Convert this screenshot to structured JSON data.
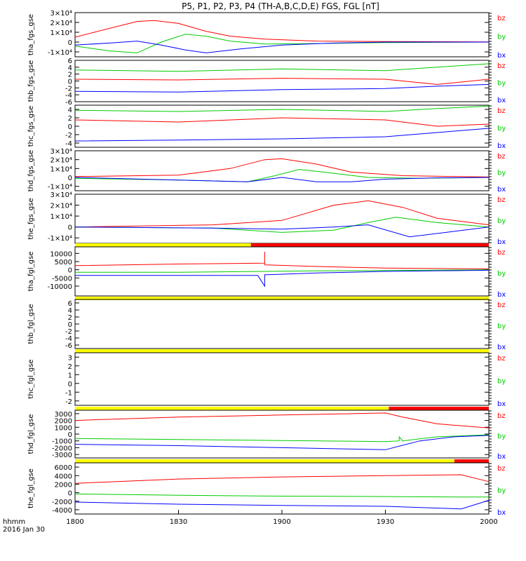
{
  "title": "P5, P1, P2, P3, P4 (TH-A,B,C,D,E) FGS, FGL [nT]",
  "footer": {
    "time_label": "hhmm",
    "date_label": "2016 Jan 30"
  },
  "chart_data": {
    "type": "line",
    "xaxis": {
      "range_hhmm": [
        "18:00",
        "20:00"
      ],
      "tick_labels": [
        "1800",
        "1830",
        "1900",
        "1930",
        "2000"
      ]
    },
    "colors": {
      "bz": "#ff0000",
      "by": "#00cc00",
      "bx": "#0000ff"
    },
    "panels": [
      {
        "id": "tha-fgs",
        "ylabel": "tha_fgs_gse",
        "ylim": [
          -15000,
          30000
        ],
        "yticks": [
          "3×10⁴",
          "2×10⁴",
          "1×10⁴",
          "0",
          "-1×10⁴"
        ],
        "ytick_values": [
          30000,
          20000,
          10000,
          0,
          -10000
        ],
        "legend": [
          "bz",
          "by",
          "bx"
        ],
        "series": [
          {
            "name": "bz",
            "x": [
              "18:00",
              "18:10",
              "18:18",
              "18:23",
              "18:30",
              "18:38",
              "18:45",
              "18:55",
              "19:10",
              "19:30",
              "20:00"
            ],
            "y": [
              5000,
              14000,
              21000,
              22000,
              19000,
              11000,
              6000,
              3000,
              1000,
              500,
              200
            ]
          },
          {
            "name": "by",
            "x": [
              "18:00",
              "18:10",
              "18:18",
              "18:25",
              "18:32",
              "18:38",
              "18:45",
              "18:55",
              "19:10",
              "19:30",
              "20:00"
            ],
            "y": [
              -4000,
              -9000,
              -11000,
              0,
              8000,
              6000,
              1000,
              -2000,
              -1500,
              -500,
              0
            ]
          },
          {
            "name": "bx",
            "x": [
              "18:00",
              "18:10",
              "18:18",
              "18:25",
              "18:32",
              "18:38",
              "18:48",
              "19:00",
              "19:15",
              "19:30",
              "20:00"
            ],
            "y": [
              -3000,
              -1000,
              1000,
              -3000,
              -8000,
              -11000,
              -7000,
              -3000,
              -1000,
              0,
              0
            ]
          }
        ]
      },
      {
        "id": "thb-fgs",
        "ylabel": "thb_fgs_gse",
        "ylim": [
          -6,
          6
        ],
        "yticks": [
          "6",
          "4",
          "2",
          "0",
          "-2",
          "-4",
          "-6"
        ],
        "ytick_values": [
          6,
          4,
          2,
          0,
          -2,
          -4,
          -6
        ],
        "legend": [
          "bz",
          "by",
          "bx"
        ],
        "series": [
          {
            "name": "by",
            "x": [
              "18:00",
              "18:30",
              "19:00",
              "19:30",
              "19:45",
              "20:00"
            ],
            "y": [
              3.2,
              2.8,
              3.5,
              3.0,
              4.0,
              5.0
            ]
          },
          {
            "name": "bz",
            "x": [
              "18:00",
              "18:30",
              "19:00",
              "19:30",
              "19:45",
              "20:00"
            ],
            "y": [
              0.5,
              0.3,
              0.8,
              0.5,
              -1.0,
              0.5
            ]
          },
          {
            "name": "bx",
            "x": [
              "18:00",
              "18:30",
              "19:00",
              "19:30",
              "19:45",
              "20:00"
            ],
            "y": [
              -3.0,
              -3.2,
              -2.5,
              -2.2,
              -1.5,
              -1.0
            ]
          }
        ]
      },
      {
        "id": "thc-fgs",
        "ylabel": "thc_fgs_gse",
        "ylim": [
          -5,
          5
        ],
        "yticks": [
          "4",
          "2",
          "0",
          "-2",
          "-4"
        ],
        "ytick_values": [
          4,
          2,
          0,
          -2,
          -4
        ],
        "legend": [
          "bz",
          "by",
          "bx"
        ],
        "series": [
          {
            "name": "by",
            "x": [
              "18:00",
              "18:30",
              "19:00",
              "19:30",
              "19:45",
              "20:00"
            ],
            "y": [
              3.8,
              3.5,
              4.0,
              3.5,
              4.2,
              4.8
            ]
          },
          {
            "name": "bz",
            "x": [
              "18:00",
              "18:30",
              "19:00",
              "19:30",
              "19:45",
              "20:00"
            ],
            "y": [
              1.5,
              1.0,
              2.0,
              1.5,
              0.0,
              0.5
            ]
          },
          {
            "name": "bx",
            "x": [
              "18:00",
              "18:30",
              "19:00",
              "19:30",
              "19:45",
              "20:00"
            ],
            "y": [
              -3.5,
              -3.3,
              -3.0,
              -2.5,
              -1.5,
              -0.5
            ]
          }
        ]
      },
      {
        "id": "thd-fgs",
        "ylabel": "thd_fgs_gse",
        "ylim": [
          -15000,
          30000
        ],
        "yticks": [
          "3×10⁴",
          "2×10⁴",
          "1×10⁴",
          "0",
          "-1×10⁴"
        ],
        "ytick_values": [
          30000,
          20000,
          10000,
          0,
          -10000
        ],
        "legend": [
          "bz",
          "by",
          "bx"
        ],
        "series": [
          {
            "name": "bz",
            "x": [
              "18:00",
              "18:30",
              "18:45",
              "18:55",
              "19:00",
              "19:10",
              "19:20",
              "19:35",
              "20:00"
            ],
            "y": [
              1000,
              2500,
              10000,
              20000,
              21000,
              15000,
              6000,
              2000,
              500
            ]
          },
          {
            "name": "by",
            "x": [
              "18:00",
              "18:30",
              "18:50",
              "18:58",
              "19:05",
              "19:12",
              "19:25",
              "19:40",
              "20:00"
            ],
            "y": [
              -1000,
              -3000,
              -5000,
              2000,
              9000,
              6000,
              0,
              -1000,
              0
            ]
          },
          {
            "name": "bx",
            "x": [
              "18:00",
              "18:30",
              "18:50",
              "19:00",
              "19:10",
              "19:20",
              "19:30",
              "19:45",
              "20:00"
            ],
            "y": [
              0,
              -3000,
              -5000,
              0,
              -5000,
              -5000,
              -2000,
              -500,
              0
            ]
          }
        ]
      },
      {
        "id": "the-fgs",
        "ylabel": "the_fgs_gse",
        "ylim": [
          -15000,
          30000
        ],
        "yticks": [
          "3×10⁴",
          "2×10⁴",
          "1×10⁴",
          "0",
          "-1×10⁴"
        ],
        "ytick_values": [
          30000,
          20000,
          10000,
          0,
          -10000
        ],
        "legend": [
          "bz",
          "by",
          "bx"
        ],
        "series": [
          {
            "name": "bz",
            "x": [
              "18:00",
              "18:40",
              "19:00",
              "19:15",
              "19:25",
              "19:35",
              "19:45",
              "20:00"
            ],
            "y": [
              0,
              2000,
              6000,
              20000,
              24000,
              18000,
              8000,
              2000
            ]
          },
          {
            "name": "by",
            "x": [
              "18:00",
              "18:40",
              "19:00",
              "19:15",
              "19:25",
              "19:33",
              "19:45",
              "20:00"
            ],
            "y": [
              0,
              -1000,
              -5000,
              -3000,
              4000,
              9000,
              4000,
              0
            ]
          },
          {
            "name": "bx",
            "x": [
              "18:00",
              "18:40",
              "19:00",
              "19:15",
              "19:25",
              "19:37",
              "19:50",
              "20:00"
            ],
            "y": [
              0,
              -1000,
              -2000,
              0,
              2000,
              -9000,
              -4000,
              0
            ]
          }
        ]
      },
      {
        "id": "tha-fgl",
        "ylabel": "tha_fgl_gse",
        "ylim": [
          -16000,
          14000
        ],
        "yticks": [
          "10000",
          "5000",
          "0",
          "-5000",
          "-10000"
        ],
        "ytick_values": [
          10000,
          5000,
          0,
          -5000,
          -10000
        ],
        "legend": [
          "bz",
          "by",
          "bx"
        ],
        "mode_bar": {
          "yellow_until": "18:51",
          "red_from": "18:51"
        },
        "series": [
          {
            "name": "bz",
            "x": [
              "18:00",
              "18:30",
              "18:55",
              "18:55",
              "18:55",
              "18:55",
              "19:10",
              "19:30",
              "20:00"
            ],
            "y": [
              2500,
              3500,
              4000,
              11000,
              4000,
              3000,
              2000,
              1000,
              500
            ]
          },
          {
            "name": "by",
            "x": [
              "18:00",
              "18:30",
              "18:55",
              "19:10",
              "19:30",
              "20:00"
            ],
            "y": [
              -1500,
              -1500,
              -1000,
              -700,
              -500,
              0
            ]
          },
          {
            "name": "bx",
            "x": [
              "18:00",
              "18:30",
              "18:53",
              "18:55",
              "18:55",
              "18:56",
              "19:10",
              "19:30",
              "20:00"
            ],
            "y": [
              -3500,
              -3500,
              -3500,
              -10000,
              -3000,
              -3000,
              -2000,
              -1000,
              -300
            ]
          }
        ]
      },
      {
        "id": "thb-fgl",
        "ylabel": "thb_fgl_gse",
        "ylim": [
          -7,
          7
        ],
        "yticks": [
          "6",
          "4",
          "2",
          "0",
          "-2",
          "-4",
          "-6"
        ],
        "ytick_values": [
          6,
          4,
          2,
          0,
          -2,
          -4,
          -6
        ],
        "legend": [
          "bz",
          "by",
          "bx"
        ],
        "mode_bar": {
          "yellow_until": "20:00"
        },
        "series": []
      },
      {
        "id": "thc-fgl",
        "ylabel": "thc_fgl_gse",
        "ylim": [
          -2.5,
          3.5
        ],
        "yticks": [
          "3",
          "2",
          "1",
          "0",
          "-1",
          "-2"
        ],
        "ytick_values": [
          3,
          2,
          1,
          0,
          -1,
          -2
        ],
        "legend": [
          "bz",
          "by",
          "bx"
        ],
        "mode_bar": {
          "yellow_until": "20:00"
        },
        "series": []
      },
      {
        "id": "thd-fgl",
        "ylabel": "thd_fgl_gse",
        "ylim": [
          -3500,
          3500
        ],
        "yticks": [
          "3000",
          "2000",
          "1000",
          "0",
          "-1000",
          "-2000",
          "-3000"
        ],
        "ytick_values": [
          3000,
          2000,
          1000,
          0,
          -1000,
          -2000,
          -3000
        ],
        "legend": [
          "bz",
          "by",
          "bx"
        ],
        "mode_bar": {
          "yellow_until": "19:31",
          "red_from": "19:31"
        },
        "series": [
          {
            "name": "bz",
            "x": [
              "18:00",
              "18:30",
              "19:00",
              "19:30",
              "19:35",
              "19:45",
              "20:00"
            ],
            "y": [
              2000,
              2500,
              2800,
              3100,
              2500,
              1500,
              900
            ]
          },
          {
            "name": "by",
            "x": [
              "18:00",
              "18:30",
              "19:00",
              "19:30",
              "19:34",
              "19:34",
              "19:35",
              "19:45",
              "20:00"
            ],
            "y": [
              -650,
              -800,
              -950,
              -1100,
              -1000,
              -400,
              -1000,
              -400,
              -100
            ]
          },
          {
            "name": "bx",
            "x": [
              "18:00",
              "18:30",
              "19:00",
              "19:30",
              "19:40",
              "19:50",
              "20:00"
            ],
            "y": [
              -1500,
              -1700,
              -2000,
              -2300,
              -1000,
              -400,
              -200
            ]
          }
        ]
      },
      {
        "id": "the-fgl",
        "ylabel": "the_fgl_gse",
        "ylim": [
          -5000,
          7000
        ],
        "yticks": [
          "6000",
          "4000",
          "2000",
          "0",
          "-2000",
          "-4000"
        ],
        "ytick_values": [
          6000,
          4000,
          2000,
          0,
          -2000,
          -4000
        ],
        "legend": [
          "bz",
          "by",
          "bx"
        ],
        "mode_bar": {
          "yellow_until": "19:50",
          "red_from": "19:50"
        },
        "series": [
          {
            "name": "bz",
            "x": [
              "18:00",
              "18:30",
              "19:00",
              "19:30",
              "19:52",
              "20:00"
            ],
            "y": [
              2200,
              3200,
              3700,
              4000,
              4200,
              2600
            ]
          },
          {
            "name": "by",
            "x": [
              "18:00",
              "18:30",
              "19:00",
              "19:30",
              "19:52",
              "20:00"
            ],
            "y": [
              -300,
              -600,
              -800,
              -900,
              -1000,
              -1000
            ]
          },
          {
            "name": "bx",
            "x": [
              "18:00",
              "18:30",
              "19:00",
              "19:30",
              "19:52",
              "20:00"
            ],
            "y": [
              -2200,
              -2700,
              -3000,
              -3200,
              -3800,
              -1800
            ]
          }
        ]
      }
    ]
  }
}
